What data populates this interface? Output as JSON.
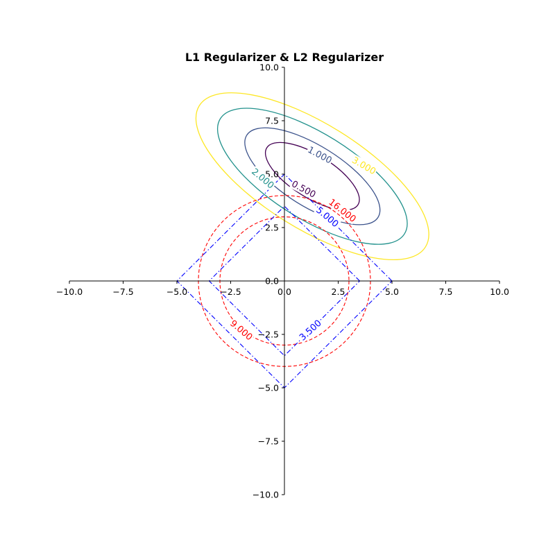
{
  "chart_data": {
    "type": "contour",
    "title": "L1 Regularizer & L2 Regularizer",
    "xlabel": "",
    "ylabel": "",
    "xlim": [
      -10,
      10
    ],
    "ylim": [
      -10,
      10
    ],
    "grid": false,
    "spines": "centered",
    "xticks": [
      "−10.0",
      "−7.5",
      "−5.0",
      "−2.5",
      "0.0",
      "2.5",
      "5.0",
      "7.5",
      "10.0"
    ],
    "yticks": [
      "−10.0",
      "−7.5",
      "−5.0",
      "−2.5",
      "0.0",
      "2.5",
      "5.0",
      "7.5",
      "10.0"
    ],
    "loss_contours": {
      "center": [
        1.3,
        4.9
      ],
      "rotation_deg": -32,
      "levels": [
        {
          "label": "0.500",
          "value": 0.5,
          "semi_axes": [
            2.5,
            1.0
          ],
          "color": "#440154"
        },
        {
          "label": "1.000",
          "value": 1.0,
          "semi_axes": [
            3.6,
            1.42
          ],
          "color": "#3b528b"
        },
        {
          "label": "2.000",
          "value": 2.0,
          "semi_axes": [
            5.05,
            2.0
          ],
          "color": "#21918c"
        },
        {
          "label": "3.000",
          "value": 3.0,
          "semi_axes": [
            6.2,
            2.45
          ],
          "color": "#fde725"
        }
      ]
    },
    "l2_contours": {
      "color": "#ff0000",
      "style": "dashed",
      "levels": [
        {
          "label": "9.000",
          "value": 9,
          "radius": 3.0
        },
        {
          "label": "16.000",
          "value": 16,
          "radius": 4.0
        }
      ]
    },
    "l1_contours": {
      "color": "#0000ff",
      "style": "dashdot",
      "levels": [
        {
          "label": "3.500",
          "value": 3.5
        },
        {
          "label": "5.000",
          "value": 5.0
        }
      ]
    }
  }
}
